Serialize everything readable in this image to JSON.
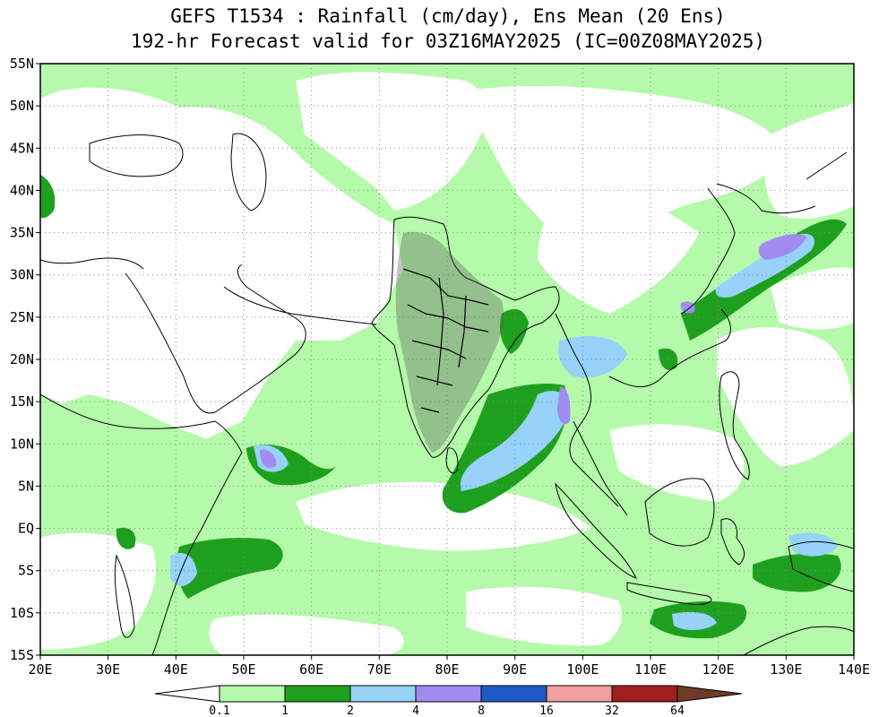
{
  "title": {
    "line1": "GEFS T1534 : Rainfall (cm/day), Ens Mean (20 Ens)",
    "line2": "192-hr Forecast valid for 03Z16MAY2025 (IC=00Z08MAY2025)"
  },
  "map": {
    "lon_range": [
      20,
      140
    ],
    "lat_range": [
      -15,
      55
    ],
    "lat_labels": [
      "55N",
      "50N",
      "45N",
      "40N",
      "35N",
      "30N",
      "25N",
      "20N",
      "15N",
      "10N",
      "5N",
      "EQ",
      "5S",
      "10S",
      "15S"
    ],
    "lat_values": [
      55,
      50,
      45,
      40,
      35,
      30,
      25,
      20,
      15,
      10,
      5,
      0,
      -5,
      -10,
      -15
    ],
    "lon_labels": [
      "20E",
      "30E",
      "40E",
      "50E",
      "60E",
      "70E",
      "80E",
      "90E",
      "100E",
      "110E",
      "120E",
      "130E",
      "140E"
    ],
    "lon_values": [
      20,
      30,
      40,
      50,
      60,
      70,
      80,
      90,
      100,
      110,
      120,
      130,
      140
    ]
  },
  "colorbar": {
    "labels": [
      "0.1",
      "1",
      "2",
      "4",
      "8",
      "16",
      "32",
      "64"
    ],
    "colors": [
      "#ffffff",
      "#b4faaa",
      "#1ea01e",
      "#96d2fa",
      "#a08cf0",
      "#1e5ac8",
      "#f0a0a0",
      "#a01e1e",
      "#6e3c28"
    ]
  }
}
